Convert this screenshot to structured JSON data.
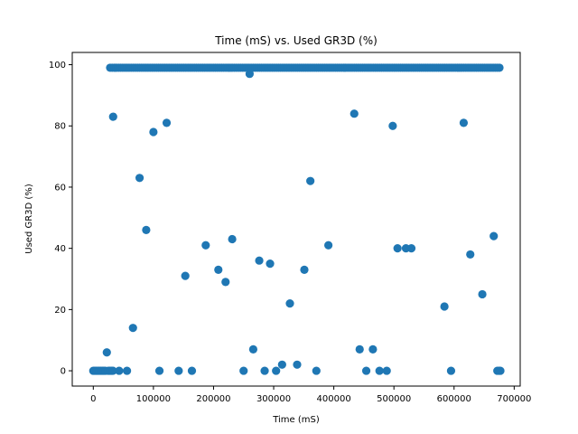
{
  "chart_data": {
    "type": "scatter",
    "title": "Time (mS) vs. Used GR3D (%)",
    "xlabel": "Time (mS)",
    "ylabel": "Used GR3D (%)",
    "xlim": [
      -35000,
      710000
    ],
    "ylim": [
      -5,
      104
    ],
    "xticks": [
      0,
      100000,
      200000,
      300000,
      400000,
      500000,
      600000,
      700000
    ],
    "xtick_labels": [
      "0",
      "100000",
      "200000",
      "300000",
      "400000",
      "500000",
      "600000",
      "700000"
    ],
    "yticks": [
      0,
      20,
      40,
      60,
      80,
      100
    ],
    "ytick_labels": [
      "0",
      "20",
      "40",
      "60",
      "80",
      "100"
    ],
    "grid": false,
    "marker_color": "#1f77b4",
    "series": [
      {
        "points": [
          [
            0,
            0
          ],
          [
            2500,
            0
          ],
          [
            5000,
            0
          ],
          [
            7500,
            0
          ],
          [
            10000,
            0
          ],
          [
            12500,
            0
          ],
          [
            15000,
            0
          ],
          [
            17500,
            0
          ],
          [
            20000,
            0
          ],
          [
            22500,
            6
          ],
          [
            25000,
            0
          ],
          [
            27500,
            0
          ],
          [
            30000,
            0
          ],
          [
            32500,
            0
          ],
          [
            33000,
            83
          ],
          [
            43000,
            0
          ],
          [
            56000,
            0
          ],
          [
            66000,
            14
          ],
          [
            77000,
            63
          ],
          [
            88000,
            46
          ],
          [
            100000,
            78
          ],
          [
            110000,
            0
          ],
          [
            122000,
            81
          ],
          [
            142000,
            0
          ],
          [
            153000,
            31
          ],
          [
            164000,
            0
          ],
          [
            187000,
            41
          ],
          [
            208000,
            33
          ],
          [
            220000,
            29
          ],
          [
            231000,
            43
          ],
          [
            250000,
            0
          ],
          [
            260000,
            97
          ],
          [
            266000,
            7
          ],
          [
            276000,
            36
          ],
          [
            285000,
            0
          ],
          [
            294000,
            35
          ],
          [
            304000,
            0
          ],
          [
            314000,
            2
          ],
          [
            327000,
            22
          ],
          [
            339000,
            2
          ],
          [
            351000,
            33
          ],
          [
            361000,
            62
          ],
          [
            371000,
            0
          ],
          [
            391000,
            41
          ],
          [
            434000,
            84
          ],
          [
            443000,
            7
          ],
          [
            454000,
            0
          ],
          [
            465000,
            7
          ],
          [
            476000,
            0
          ],
          [
            488000,
            0
          ],
          [
            498000,
            80
          ],
          [
            506000,
            40
          ],
          [
            520000,
            40
          ],
          [
            529000,
            40
          ],
          [
            584000,
            21
          ],
          [
            595000,
            0
          ],
          [
            616000,
            81
          ],
          [
            627000,
            38
          ],
          [
            647000,
            25
          ],
          [
            666000,
            44
          ],
          [
            672000,
            0
          ],
          [
            675000,
            0
          ],
          [
            677000,
            0
          ]
        ]
      }
    ],
    "top_band": {
      "x_start": 28000,
      "x_end": 676000,
      "x_step": 3500,
      "y": 99
    }
  }
}
